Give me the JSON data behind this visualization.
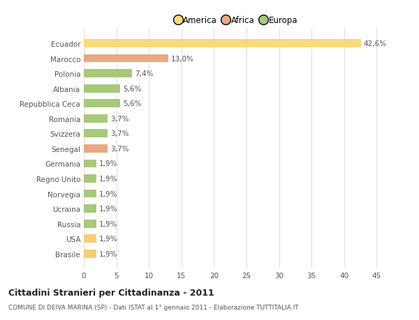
{
  "categories": [
    "Brasile",
    "USA",
    "Russia",
    "Ucraina",
    "Norvegia",
    "Regno Unito",
    "Germania",
    "Senegal",
    "Svizzera",
    "Romania",
    "Repubblica Ceca",
    "Albania",
    "Polonia",
    "Marocco",
    "Ecuador"
  ],
  "values": [
    1.9,
    1.9,
    1.9,
    1.9,
    1.9,
    1.9,
    1.9,
    3.7,
    3.7,
    3.7,
    5.6,
    5.6,
    7.4,
    13.0,
    42.6
  ],
  "labels": [
    "1,9%",
    "1,9%",
    "1,9%",
    "1,9%",
    "1,9%",
    "1,9%",
    "1,9%",
    "3,7%",
    "3,7%",
    "3,7%",
    "5,6%",
    "5,6%",
    "7,4%",
    "13,0%",
    "42,6%"
  ],
  "colors": [
    "#f5cf6e",
    "#f5cf6e",
    "#a8c87a",
    "#a8c87a",
    "#a8c87a",
    "#a8c87a",
    "#a8c87a",
    "#e8a882",
    "#a8c87a",
    "#a8c87a",
    "#a8c87a",
    "#a8c87a",
    "#a8c87a",
    "#e8a882",
    "#f9d97a"
  ],
  "legend": [
    {
      "label": "America",
      "color": "#f9d97a"
    },
    {
      "label": "Africa",
      "color": "#e8a882"
    },
    {
      "label": "Europa",
      "color": "#a8c87a"
    }
  ],
  "xlim": [
    0,
    47
  ],
  "xticks": [
    0,
    5,
    10,
    15,
    20,
    25,
    30,
    35,
    40,
    45
  ],
  "title": "Cittadini Stranieri per Cittadinanza - 2011",
  "subtitle": "COMUNE DI DEIVA MARINA (SP) - Dati ISTAT al 1° gennaio 2011 - Elaborazione TUTTITALIA.IT",
  "background_color": "#ffffff",
  "grid_color": "#e0e0e0",
  "bar_height": 0.55,
  "label_fontsize": 7.5,
  "tick_fontsize": 7.5,
  "ytick_fontsize": 7.5
}
